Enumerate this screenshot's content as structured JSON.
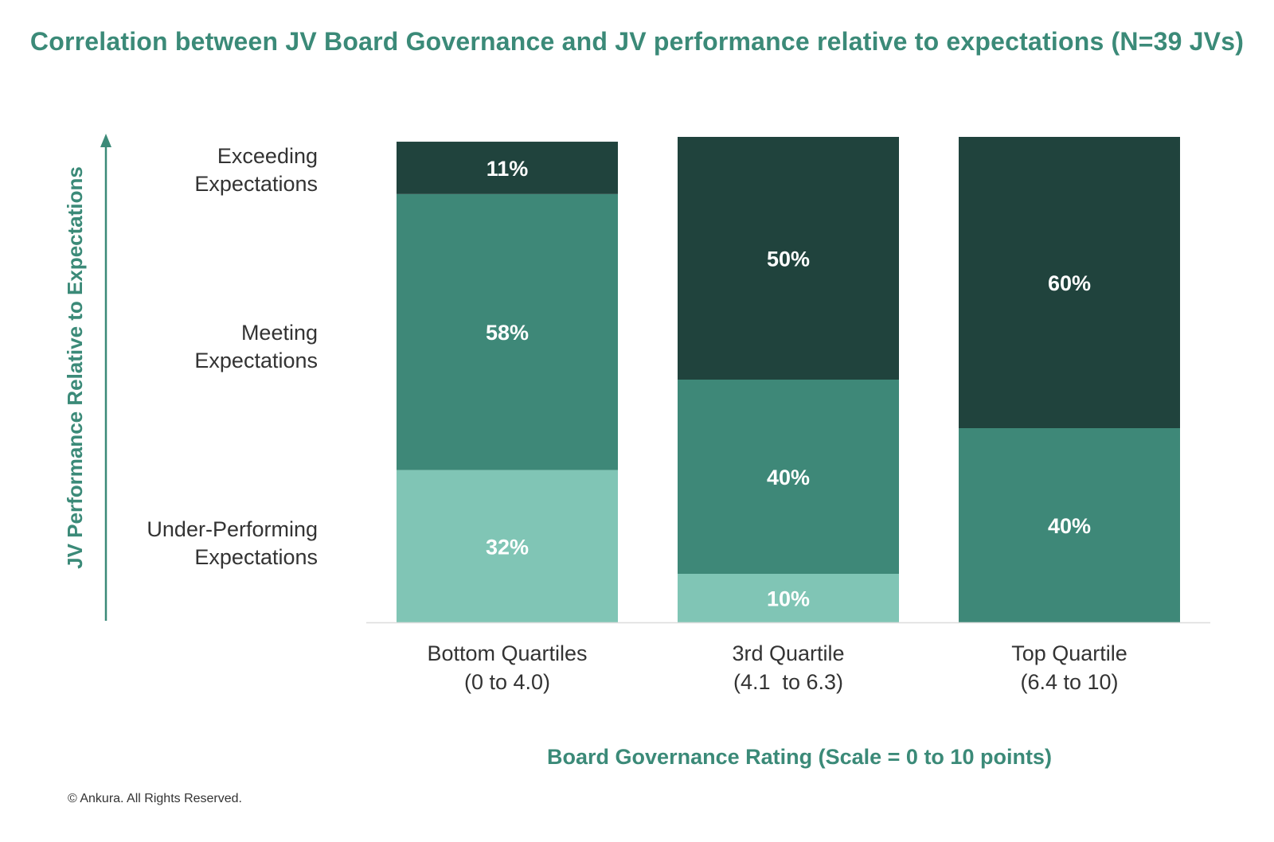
{
  "chart_data": {
    "type": "bar",
    "stacked": true,
    "title": "Correlation between JV Board Governance and JV performance relative to expectations (N=39 JVs)",
    "xlabel": "Board Governance Rating (Scale = 0 to 10 points)",
    "ylabel": "JV Performance Relative to Expectations",
    "ylim": [
      0,
      100
    ],
    "grid": false,
    "categories": [
      [
        "Bottom Quartiles",
        "(0 to 4.0)"
      ],
      [
        "3rd Quartile",
        "(4.1  to 6.3)"
      ],
      [
        "Top Quartile",
        "(6.4 to 10)"
      ]
    ],
    "y_level_labels": [
      [
        "Exceeding",
        "Expectations"
      ],
      [
        "Meeting",
        "Expectations"
      ],
      [
        "Under-Performing",
        "Expectations"
      ]
    ],
    "series": [
      {
        "key": "under",
        "values": [
          32,
          10,
          0
        ],
        "labels": [
          "32%",
          "10%",
          ""
        ],
        "color": "#80c5b5"
      },
      {
        "key": "meeting",
        "values": [
          58,
          40,
          40
        ],
        "labels": [
          "58%",
          "40%",
          "40%"
        ],
        "color": "#3e8878"
      },
      {
        "key": "exceeding",
        "values": [
          11,
          50,
          60
        ],
        "labels": [
          "11%",
          "50%",
          "60%"
        ],
        "color": "#20433d"
      }
    ],
    "accent_color": "#3b8a78",
    "axis_color": "#dddddd"
  },
  "footer": {
    "copyright": "© Ankura. All Rights Reserved."
  }
}
